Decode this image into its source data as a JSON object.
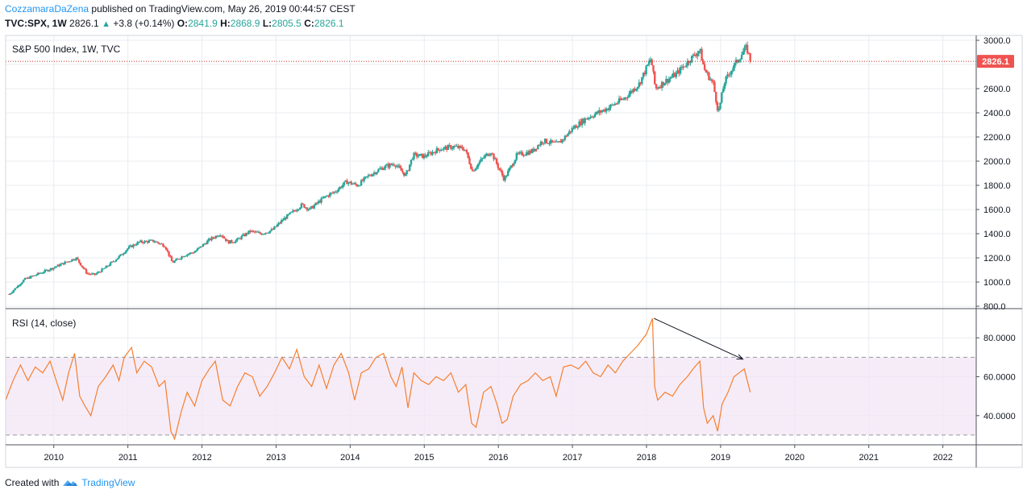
{
  "header": {
    "author": "CozzamaraDaZena",
    "published_text": "published on TradingView.com, May 26, 2019 00:44:57 CEST"
  },
  "ohlc": {
    "symbol": "TVC:SPX, 1W",
    "last": "2826.1",
    "change": "+3.8 (+0.14%)",
    "o_label": "O:",
    "o": "2841.9",
    "h_label": "H:",
    "h": "2868.9",
    "l_label": "L:",
    "l": "2805.5",
    "c_label": "C:",
    "c": "2826.1"
  },
  "footer": {
    "created_with": "Created with",
    "brand": "TradingView"
  },
  "colors": {
    "up": "#26a69a",
    "down": "#ef5350",
    "rsi_line": "#f57f2e",
    "rsi_band": "#f3e5f5",
    "price_line": "#c62828",
    "grid": "#e9ecf0"
  },
  "chart_data": [
    {
      "type": "candlestick",
      "title": "S&P 500 Index, 1W, TVC",
      "current_price_label": "2826.1",
      "current_price": 2826.1,
      "y_ticks": [
        "800.0",
        "1000.0",
        "1200.0",
        "1400.0",
        "1600.0",
        "1800.0",
        "2000.0",
        "2200.0",
        "2400.0",
        "2600.0",
        "2800.0",
        "3000.0"
      ],
      "ylim": [
        780,
        3040
      ],
      "x_ticks": [
        "2010",
        "2011",
        "2012",
        "2013",
        "2014",
        "2015",
        "2016",
        "2017",
        "2018",
        "2019",
        "2020",
        "2021",
        "2022"
      ],
      "xlim": [
        2009.35,
        2022.45
      ],
      "price_path": [
        [
          2009.4,
          900
        ],
        [
          2009.6,
          1020
        ],
        [
          2009.8,
          1070
        ],
        [
          2010.0,
          1120
        ],
        [
          2010.15,
          1160
        ],
        [
          2010.3,
          1200
        ],
        [
          2010.45,
          1070
        ],
        [
          2010.55,
          1060
        ],
        [
          2010.7,
          1120
        ],
        [
          2010.9,
          1220
        ],
        [
          2011.0,
          1280
        ],
        [
          2011.15,
          1330
        ],
        [
          2011.35,
          1340
        ],
        [
          2011.5,
          1300
        ],
        [
          2011.6,
          1160
        ],
        [
          2011.75,
          1220
        ],
        [
          2011.9,
          1250
        ],
        [
          2012.1,
          1350
        ],
        [
          2012.25,
          1400
        ],
        [
          2012.35,
          1330
        ],
        [
          2012.45,
          1340
        ],
        [
          2012.65,
          1420
        ],
        [
          2012.8,
          1400
        ],
        [
          2012.95,
          1430
        ],
        [
          2013.1,
          1520
        ],
        [
          2013.35,
          1640
        ],
        [
          2013.45,
          1600
        ],
        [
          2013.65,
          1700
        ],
        [
          2013.8,
          1750
        ],
        [
          2013.95,
          1830
        ],
        [
          2014.1,
          1800
        ],
        [
          2014.25,
          1880
        ],
        [
          2014.45,
          1950
        ],
        [
          2014.6,
          1980
        ],
        [
          2014.75,
          1880
        ],
        [
          2014.85,
          2050
        ],
        [
          2015.0,
          2040
        ],
        [
          2015.2,
          2100
        ],
        [
          2015.4,
          2120
        ],
        [
          2015.55,
          2100
        ],
        [
          2015.65,
          1920
        ],
        [
          2015.8,
          2030
        ],
        [
          2015.9,
          2080
        ],
        [
          2016.0,
          1950
        ],
        [
          2016.08,
          1850
        ],
        [
          2016.25,
          2050
        ],
        [
          2016.45,
          2080
        ],
        [
          2016.6,
          2170
        ],
        [
          2016.8,
          2140
        ],
        [
          2016.9,
          2200
        ],
        [
          2017.0,
          2270
        ],
        [
          2017.2,
          2360
        ],
        [
          2017.45,
          2430
        ],
        [
          2017.7,
          2520
        ],
        [
          2017.9,
          2640
        ],
        [
          2018.06,
          2850
        ],
        [
          2018.12,
          2600
        ],
        [
          2018.25,
          2660
        ],
        [
          2018.4,
          2720
        ],
        [
          2018.6,
          2850
        ],
        [
          2018.72,
          2920
        ],
        [
          2018.78,
          2760
        ],
        [
          2018.9,
          2640
        ],
        [
          2018.97,
          2400
        ],
        [
          2019.05,
          2650
        ],
        [
          2019.15,
          2760
        ],
        [
          2019.3,
          2900
        ],
        [
          2019.35,
          2940
        ],
        [
          2019.4,
          2840
        ]
      ],
      "annotations": []
    },
    {
      "type": "line",
      "title": "RSI (14, close)",
      "y_ticks": [
        "40.0000",
        "60.0000",
        "80.0000"
      ],
      "ylim": [
        25,
        95
      ],
      "band": [
        30,
        70
      ],
      "series_points": [
        [
          2009.35,
          48
        ],
        [
          2009.45,
          58
        ],
        [
          2009.55,
          66
        ],
        [
          2009.65,
          58
        ],
        [
          2009.75,
          65
        ],
        [
          2009.85,
          62
        ],
        [
          2009.95,
          68
        ],
        [
          2010.05,
          56
        ],
        [
          2010.12,
          48
        ],
        [
          2010.2,
          62
        ],
        [
          2010.28,
          72
        ],
        [
          2010.35,
          50
        ],
        [
          2010.42,
          45
        ],
        [
          2010.5,
          40
        ],
        [
          2010.6,
          55
        ],
        [
          2010.7,
          60
        ],
        [
          2010.8,
          66
        ],
        [
          2010.88,
          58
        ],
        [
          2010.95,
          70
        ],
        [
          2011.05,
          75
        ],
        [
          2011.12,
          62
        ],
        [
          2011.22,
          68
        ],
        [
          2011.32,
          65
        ],
        [
          2011.42,
          55
        ],
        [
          2011.5,
          58
        ],
        [
          2011.58,
          32
        ],
        [
          2011.63,
          28
        ],
        [
          2011.72,
          42
        ],
        [
          2011.8,
          52
        ],
        [
          2011.9,
          45
        ],
        [
          2012.0,
          58
        ],
        [
          2012.1,
          64
        ],
        [
          2012.18,
          68
        ],
        [
          2012.28,
          48
        ],
        [
          2012.38,
          45
        ],
        [
          2012.48,
          55
        ],
        [
          2012.58,
          62
        ],
        [
          2012.68,
          60
        ],
        [
          2012.78,
          50
        ],
        [
          2012.88,
          55
        ],
        [
          2012.98,
          62
        ],
        [
          2013.08,
          70
        ],
        [
          2013.18,
          64
        ],
        [
          2013.28,
          74
        ],
        [
          2013.38,
          60
        ],
        [
          2013.48,
          55
        ],
        [
          2013.58,
          66
        ],
        [
          2013.68,
          54
        ],
        [
          2013.78,
          66
        ],
        [
          2013.88,
          72
        ],
        [
          2013.98,
          62
        ],
        [
          2014.06,
          48
        ],
        [
          2014.15,
          62
        ],
        [
          2014.25,
          64
        ],
        [
          2014.35,
          70
        ],
        [
          2014.45,
          72
        ],
        [
          2014.55,
          60
        ],
        [
          2014.62,
          55
        ],
        [
          2014.7,
          65
        ],
        [
          2014.78,
          44
        ],
        [
          2014.86,
          62
        ],
        [
          2014.96,
          58
        ],
        [
          2015.06,
          56
        ],
        [
          2015.16,
          60
        ],
        [
          2015.26,
          58
        ],
        [
          2015.36,
          62
        ],
        [
          2015.46,
          52
        ],
        [
          2015.56,
          56
        ],
        [
          2015.64,
          36
        ],
        [
          2015.7,
          34
        ],
        [
          2015.8,
          52
        ],
        [
          2015.9,
          55
        ],
        [
          2015.98,
          46
        ],
        [
          2016.05,
          36
        ],
        [
          2016.12,
          38
        ],
        [
          2016.2,
          50
        ],
        [
          2016.3,
          56
        ],
        [
          2016.4,
          58
        ],
        [
          2016.5,
          62
        ],
        [
          2016.6,
          58
        ],
        [
          2016.7,
          60
        ],
        [
          2016.78,
          50
        ],
        [
          2016.88,
          65
        ],
        [
          2016.98,
          66
        ],
        [
          2017.08,
          64
        ],
        [
          2017.18,
          68
        ],
        [
          2017.28,
          62
        ],
        [
          2017.38,
          60
        ],
        [
          2017.48,
          66
        ],
        [
          2017.58,
          62
        ],
        [
          2017.68,
          68
        ],
        [
          2017.78,
          72
        ],
        [
          2017.88,
          76
        ],
        [
          2018.0,
          82
        ],
        [
          2018.08,
          90
        ],
        [
          2018.11,
          55
        ],
        [
          2018.15,
          48
        ],
        [
          2018.25,
          52
        ],
        [
          2018.35,
          50
        ],
        [
          2018.45,
          56
        ],
        [
          2018.55,
          60
        ],
        [
          2018.65,
          65
        ],
        [
          2018.72,
          68
        ],
        [
          2018.77,
          44
        ],
        [
          2018.82,
          36
        ],
        [
          2018.9,
          40
        ],
        [
          2018.96,
          32
        ],
        [
          2019.02,
          46
        ],
        [
          2019.1,
          52
        ],
        [
          2019.18,
          60
        ],
        [
          2019.25,
          62
        ],
        [
          2019.32,
          64
        ],
        [
          2019.36,
          58
        ],
        [
          2019.4,
          52
        ]
      ],
      "arrow": {
        "from": [
          2018.1,
          90
        ],
        "to": [
          2019.3,
          69
        ]
      }
    }
  ]
}
